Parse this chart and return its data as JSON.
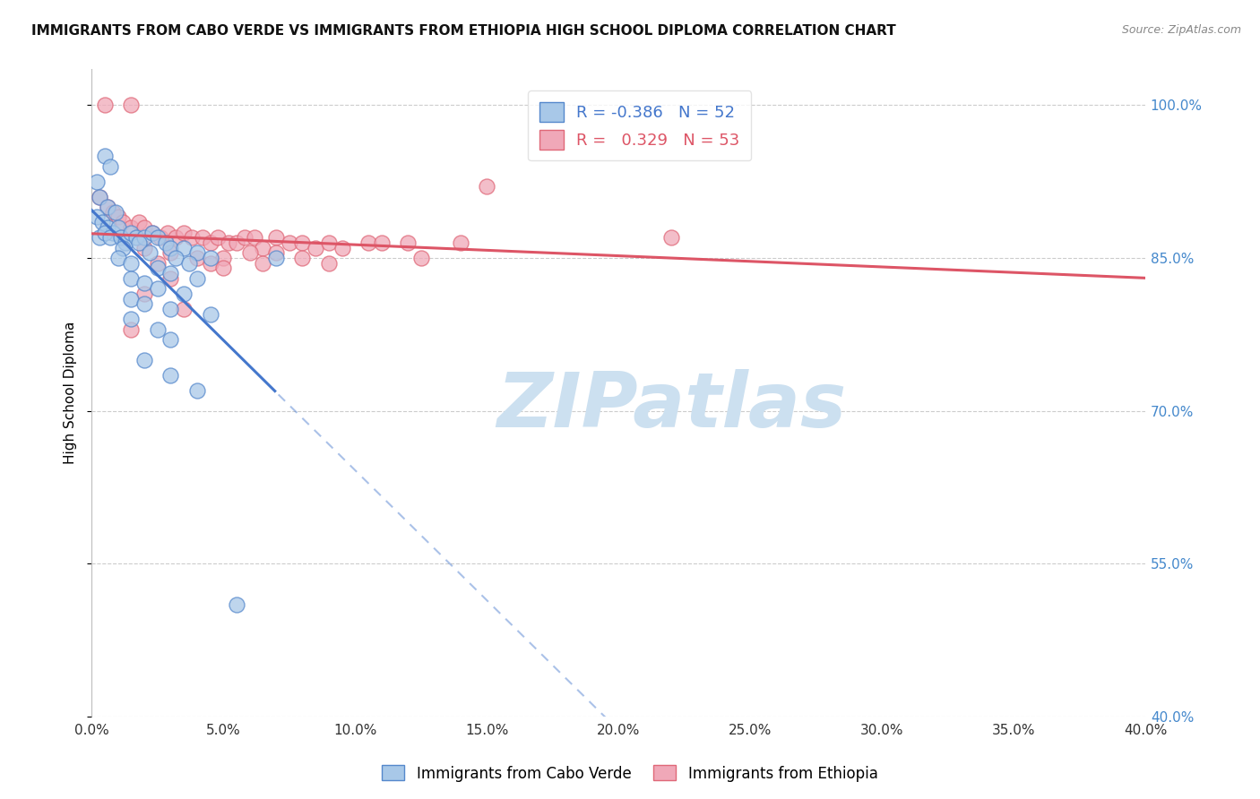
{
  "title": "IMMIGRANTS FROM CABO VERDE VS IMMIGRANTS FROM ETHIOPIA HIGH SCHOOL DIPLOMA CORRELATION CHART",
  "source": "Source: ZipAtlas.com",
  "ylabel": "High School Diploma",
  "y_ticks": [
    40.0,
    55.0,
    70.0,
    85.0,
    100.0
  ],
  "x_ticks": [
    0.0,
    5.0,
    10.0,
    15.0,
    20.0,
    25.0,
    30.0,
    35.0,
    40.0
  ],
  "xlim": [
    0.0,
    40.0
  ],
  "ylim": [
    40.0,
    103.5
  ],
  "cabo_verde_R": "-0.386",
  "cabo_verde_N": "52",
  "ethiopia_R": "0.329",
  "ethiopia_N": "53",
  "cabo_verde_color": "#a8c8e8",
  "ethiopia_color": "#f0a8b8",
  "cabo_verde_edge_color": "#5588cc",
  "ethiopia_edge_color": "#e06878",
  "cabo_verde_line_color": "#4477cc",
  "ethiopia_line_color": "#dd5566",
  "cabo_verde_scatter": [
    [
      0.2,
      92.5
    ],
    [
      0.5,
      95.0
    ],
    [
      0.7,
      94.0
    ],
    [
      0.3,
      91.0
    ],
    [
      0.6,
      90.0
    ],
    [
      0.9,
      89.5
    ],
    [
      0.2,
      89.0
    ],
    [
      0.4,
      88.5
    ],
    [
      0.6,
      88.0
    ],
    [
      0.8,
      87.5
    ],
    [
      1.0,
      88.0
    ],
    [
      0.3,
      87.0
    ],
    [
      0.5,
      87.5
    ],
    [
      0.7,
      87.0
    ],
    [
      1.1,
      87.0
    ],
    [
      1.3,
      86.5
    ],
    [
      1.5,
      87.5
    ],
    [
      1.7,
      87.0
    ],
    [
      2.0,
      87.0
    ],
    [
      2.3,
      87.5
    ],
    [
      2.5,
      87.0
    ],
    [
      2.8,
      86.5
    ],
    [
      3.0,
      86.0
    ],
    [
      3.5,
      86.0
    ],
    [
      4.0,
      85.5
    ],
    [
      4.5,
      85.0
    ],
    [
      1.2,
      86.0
    ],
    [
      1.8,
      86.5
    ],
    [
      2.2,
      85.5
    ],
    [
      3.2,
      85.0
    ],
    [
      3.7,
      84.5
    ],
    [
      1.0,
      85.0
    ],
    [
      1.5,
      84.5
    ],
    [
      2.5,
      84.0
    ],
    [
      3.0,
      83.5
    ],
    [
      4.0,
      83.0
    ],
    [
      1.5,
      83.0
    ],
    [
      2.0,
      82.5
    ],
    [
      2.5,
      82.0
    ],
    [
      3.5,
      81.5
    ],
    [
      1.5,
      81.0
    ],
    [
      2.0,
      80.5
    ],
    [
      3.0,
      80.0
    ],
    [
      4.5,
      79.5
    ],
    [
      1.5,
      79.0
    ],
    [
      2.5,
      78.0
    ],
    [
      3.0,
      77.0
    ],
    [
      2.0,
      75.0
    ],
    [
      3.0,
      73.5
    ],
    [
      4.0,
      72.0
    ],
    [
      5.5,
      51.0
    ],
    [
      7.0,
      85.0
    ]
  ],
  "ethiopia_scatter": [
    [
      0.3,
      91.0
    ],
    [
      0.6,
      90.0
    ],
    [
      0.8,
      89.5
    ],
    [
      1.0,
      89.0
    ],
    [
      1.2,
      88.5
    ],
    [
      1.5,
      88.0
    ],
    [
      1.8,
      88.5
    ],
    [
      2.0,
      88.0
    ],
    [
      2.3,
      87.5
    ],
    [
      2.6,
      87.0
    ],
    [
      2.9,
      87.5
    ],
    [
      3.2,
      87.0
    ],
    [
      3.5,
      87.5
    ],
    [
      3.8,
      87.0
    ],
    [
      4.2,
      87.0
    ],
    [
      4.5,
      86.5
    ],
    [
      4.8,
      87.0
    ],
    [
      5.2,
      86.5
    ],
    [
      5.5,
      86.5
    ],
    [
      5.8,
      87.0
    ],
    [
      6.2,
      87.0
    ],
    [
      6.5,
      86.0
    ],
    [
      7.0,
      87.0
    ],
    [
      7.5,
      86.5
    ],
    [
      8.0,
      86.5
    ],
    [
      8.5,
      86.0
    ],
    [
      9.0,
      86.5
    ],
    [
      9.5,
      86.0
    ],
    [
      10.5,
      86.5
    ],
    [
      11.0,
      86.5
    ],
    [
      12.0,
      86.5
    ],
    [
      2.0,
      86.0
    ],
    [
      3.0,
      85.5
    ],
    [
      4.0,
      85.0
    ],
    [
      5.0,
      85.0
    ],
    [
      6.0,
      85.5
    ],
    [
      7.0,
      85.5
    ],
    [
      8.0,
      85.0
    ],
    [
      2.5,
      84.5
    ],
    [
      4.5,
      84.5
    ],
    [
      6.5,
      84.5
    ],
    [
      3.0,
      83.0
    ],
    [
      5.0,
      84.0
    ],
    [
      2.0,
      81.5
    ],
    [
      3.5,
      80.0
    ],
    [
      1.5,
      78.0
    ],
    [
      0.5,
      100.0
    ],
    [
      1.5,
      100.0
    ],
    [
      15.0,
      92.0
    ],
    [
      22.0,
      87.0
    ],
    [
      12.5,
      85.0
    ],
    [
      14.0,
      86.5
    ],
    [
      9.0,
      84.5
    ]
  ],
  "watermark_text": "ZIPatlas",
  "watermark_color": "#cce0f0",
  "background_color": "#ffffff",
  "grid_color": "#cccccc",
  "right_axis_color": "#4488cc",
  "title_color": "#111111",
  "source_color": "#888888"
}
